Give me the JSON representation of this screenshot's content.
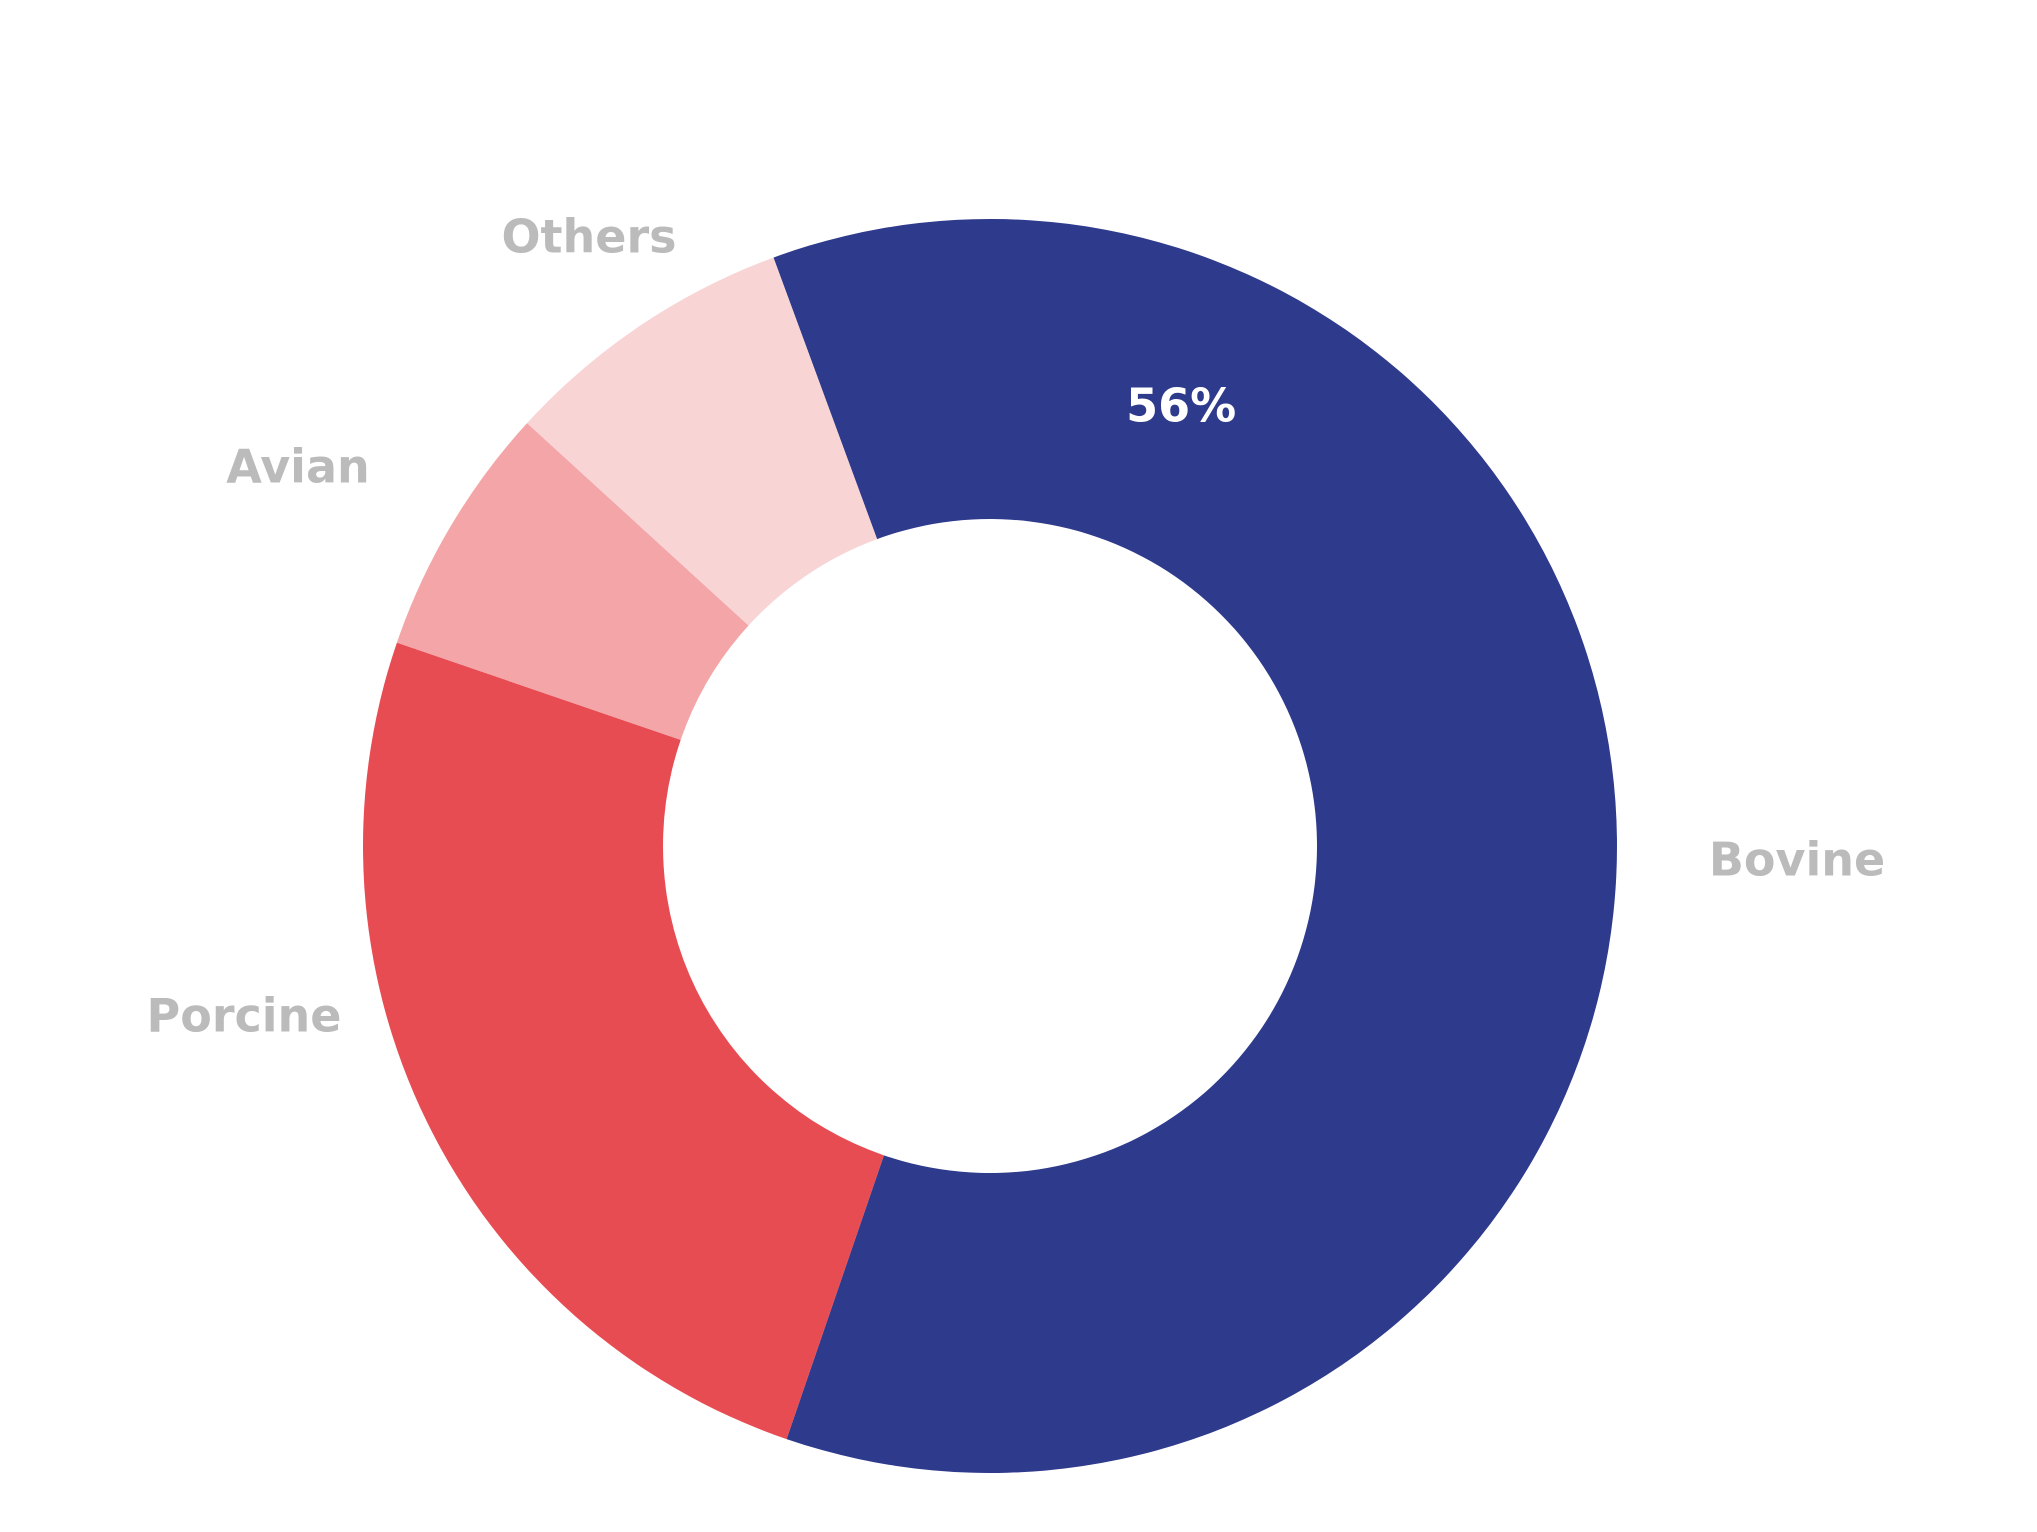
{
  "chart_data": {
    "type": "donut",
    "categories": [
      "Bovine",
      "Porcine",
      "Avian",
      "Others"
    ],
    "values": [
      56,
      23,
      6,
      7
    ],
    "value_labels": [
      "56%",
      null,
      null,
      null
    ],
    "colors": [
      "#2e3a8c",
      "#e84c53",
      "#f4a5a8",
      "#f8d4d5"
    ]
  }
}
